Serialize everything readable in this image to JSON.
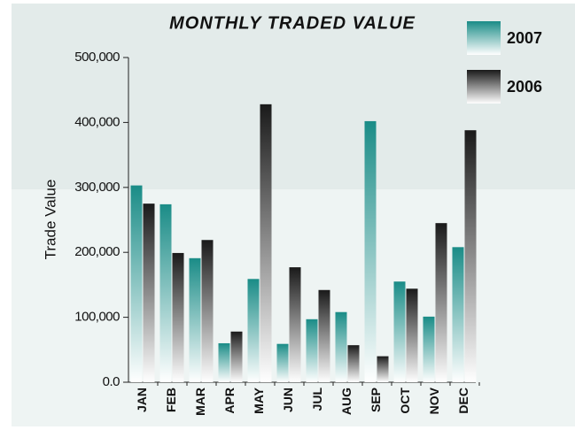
{
  "chart_data": {
    "type": "bar",
    "title": "MONTHLY TRADED VALUE",
    "y_label": "Trade Value",
    "categories": [
      "JAN",
      "FEB",
      "MAR",
      "APR",
      "MAY",
      "JUN",
      "JUL",
      "AUG",
      "SEP",
      "OCT",
      "NOV",
      "DEC"
    ],
    "series": [
      {
        "name": "2007",
        "color": "#1a8c87",
        "values": [
          303000,
          274000,
          191000,
          60000,
          159000,
          59000,
          97000,
          108000,
          402000,
          155000,
          101000,
          208000
        ]
      },
      {
        "name": "2006",
        "color": "#1a1a1a",
        "values": [
          275000,
          199000,
          219000,
          78000,
          428000,
          177000,
          142000,
          57000,
          40000,
          144000,
          245000,
          388000
        ]
      }
    ],
    "ylim": [
      0,
      500000
    ],
    "yticks": [
      {
        "value": 0,
        "label": "0.0"
      },
      {
        "value": 100000,
        "label": "100,000"
      },
      {
        "value": 200000,
        "label": "200,000"
      },
      {
        "value": 300000,
        "label": "300,000"
      },
      {
        "value": 400000,
        "label": "400,000"
      },
      {
        "value": 500000,
        "label": "500,000"
      }
    ],
    "legend": "top-right"
  }
}
